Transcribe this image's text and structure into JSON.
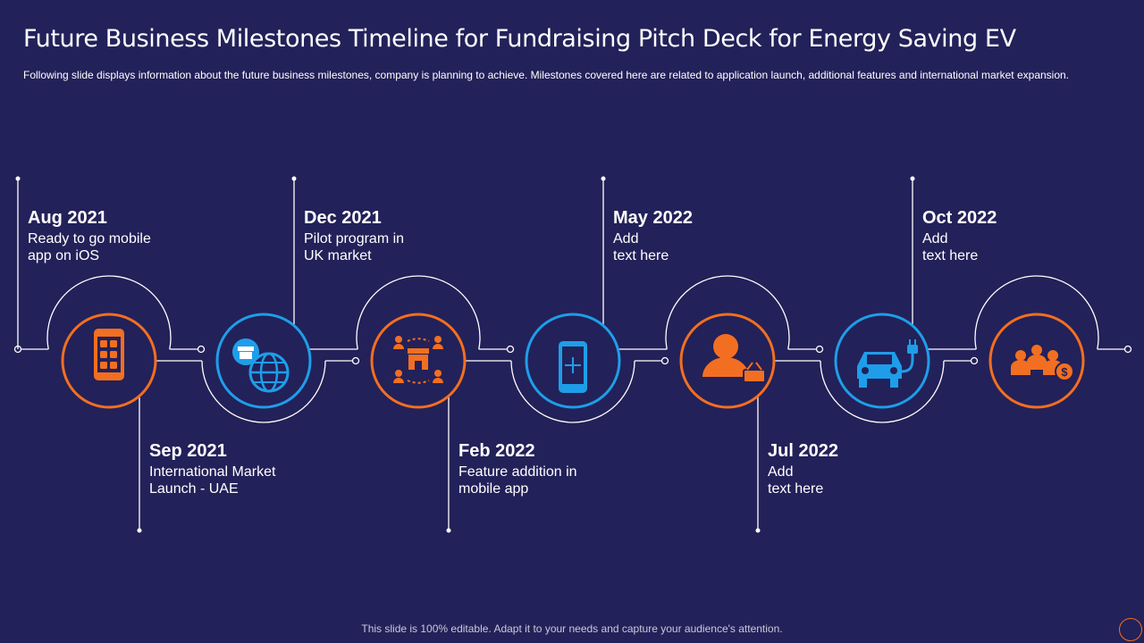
{
  "title": "Future Business Milestones Timeline for Fundraising Pitch Deck for Energy Saving EV",
  "subtitle": "Following slide displays information  about the future business milestones, company is planning to achieve.  Milestones covered  here are related to application launch, additional features and international market expansion.",
  "colors": {
    "background": "#232159",
    "orange": "#f26f21",
    "blue": "#1e9ee9",
    "line": "#ffffff"
  },
  "milestones": [
    {
      "date": "Aug 2021",
      "desc": "Ready to go mobile\napp on iOS",
      "icon": "mobile-apps-icon",
      "accent": "orange",
      "position": "top"
    },
    {
      "date": "Sep 2021",
      "desc": "International  Market\nLaunch  - UAE",
      "icon": "globe-store-icon",
      "accent": "blue",
      "position": "bottom"
    },
    {
      "date": "Dec 2021",
      "desc": "Pilot program in\nUK market",
      "icon": "store-network-icon",
      "accent": "orange",
      "position": "top"
    },
    {
      "date": "Feb 2022",
      "desc": "Feature addition in\nmobile app",
      "icon": "phone-add-icon",
      "accent": "blue",
      "position": "bottom"
    },
    {
      "date": "May 2022",
      "desc": "Add\ntext here",
      "icon": "customer-basket-icon",
      "accent": "orange",
      "position": "top"
    },
    {
      "date": "Jul 2022",
      "desc": "Add\ntext here",
      "icon": "electric-car-icon",
      "accent": "blue",
      "position": "bottom"
    },
    {
      "date": "Oct 2022",
      "desc": "Add\ntext here",
      "icon": "investors-icon",
      "accent": "orange",
      "position": "top"
    }
  ],
  "footer": "This slide is 100% editable. Adapt it to your needs and capture your audience's attention."
}
